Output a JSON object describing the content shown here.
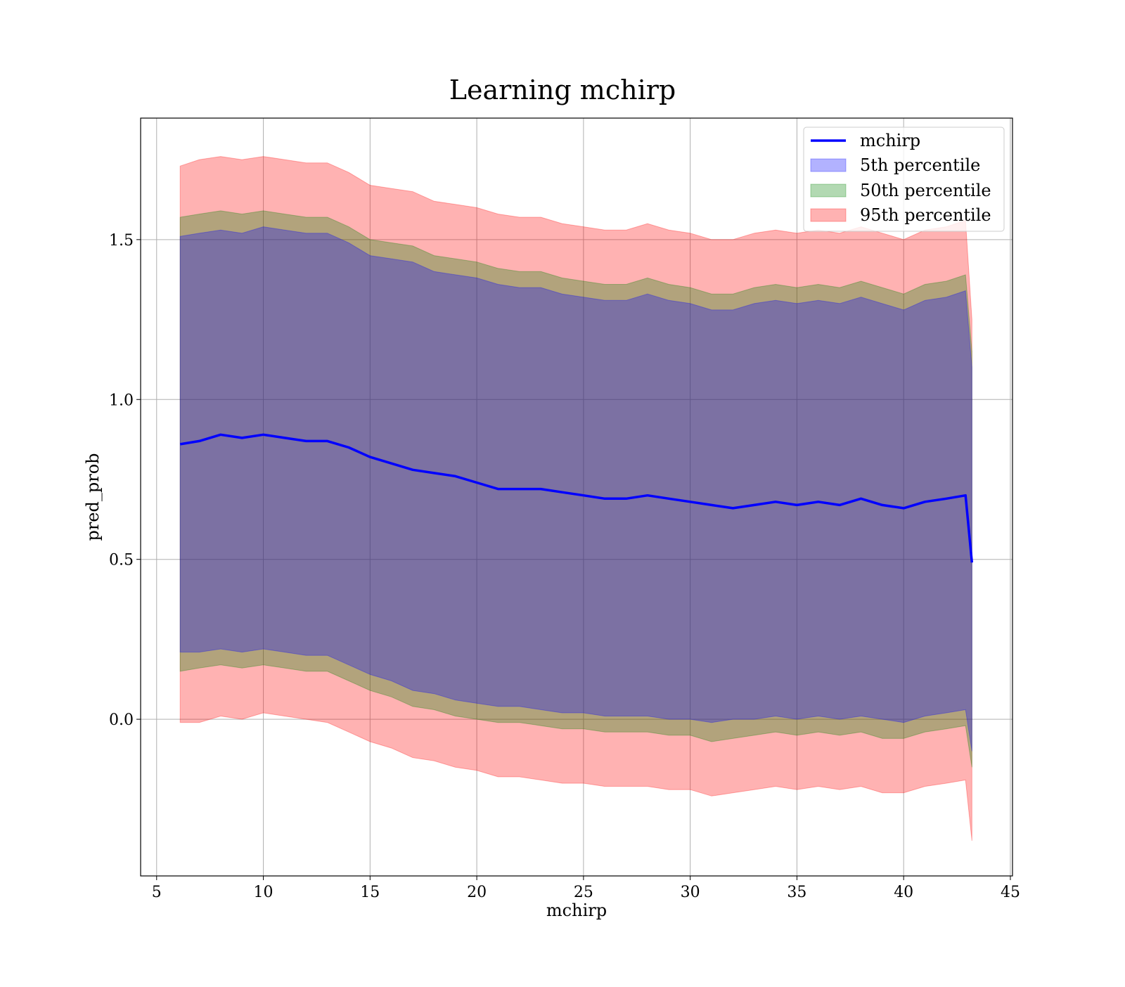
{
  "chart_data": {
    "type": "area",
    "title": "Learning mchirp",
    "xlabel": "mchirp",
    "ylabel": "pred_prob",
    "xlim": [
      4.25,
      45.1
    ],
    "ylim": [
      -0.49,
      1.88
    ],
    "xticks": [
      5,
      10,
      15,
      20,
      25,
      30,
      35,
      40,
      45
    ],
    "yticks": [
      0.0,
      0.5,
      1.0,
      1.5
    ],
    "ytick_labels": [
      "0.0",
      "0.5",
      "1.0",
      "1.5"
    ],
    "grid": true,
    "legend_position": "top-right",
    "x": [
      6.1,
      7.0,
      8.0,
      9.0,
      10.0,
      11.0,
      12.0,
      13.0,
      14.0,
      15.0,
      16.0,
      17.0,
      18.0,
      19.0,
      20.0,
      21.0,
      22.0,
      23.0,
      24.0,
      25.0,
      26.0,
      27.0,
      28.0,
      29.0,
      30.0,
      31.0,
      32.0,
      33.0,
      34.0,
      35.0,
      36.0,
      37.0,
      38.0,
      39.0,
      40.0,
      41.0,
      42.0,
      42.9,
      43.2
    ],
    "series": [
      {
        "name": "mchirp",
        "kind": "line",
        "color": "#0000ff",
        "values": [
          0.86,
          0.87,
          0.89,
          0.88,
          0.89,
          0.88,
          0.87,
          0.87,
          0.85,
          0.82,
          0.8,
          0.78,
          0.77,
          0.76,
          0.74,
          0.72,
          0.72,
          0.72,
          0.71,
          0.7,
          0.69,
          0.69,
          0.7,
          0.69,
          0.68,
          0.67,
          0.66,
          0.67,
          0.68,
          0.67,
          0.68,
          0.67,
          0.69,
          0.67,
          0.66,
          0.68,
          0.69,
          0.7,
          0.49
        ]
      },
      {
        "name": "5th percentile",
        "kind": "band",
        "color": "#0000ff",
        "lower": [
          0.21,
          0.21,
          0.22,
          0.21,
          0.22,
          0.21,
          0.2,
          0.2,
          0.17,
          0.14,
          0.12,
          0.09,
          0.08,
          0.06,
          0.05,
          0.04,
          0.04,
          0.03,
          0.02,
          0.02,
          0.01,
          0.01,
          0.01,
          0.0,
          0.0,
          -0.01,
          0.0,
          0.0,
          0.01,
          0.0,
          0.01,
          0.0,
          0.01,
          0.0,
          -0.01,
          0.01,
          0.02,
          0.03,
          -0.1
        ],
        "upper": [
          1.51,
          1.52,
          1.53,
          1.52,
          1.54,
          1.53,
          1.52,
          1.52,
          1.49,
          1.45,
          1.44,
          1.43,
          1.4,
          1.39,
          1.38,
          1.36,
          1.35,
          1.35,
          1.33,
          1.32,
          1.31,
          1.31,
          1.33,
          1.31,
          1.3,
          1.28,
          1.28,
          1.3,
          1.31,
          1.3,
          1.31,
          1.3,
          1.32,
          1.3,
          1.28,
          1.31,
          1.32,
          1.34,
          1.1
        ]
      },
      {
        "name": "50th percentile",
        "kind": "band",
        "color": "#008000",
        "lower": [
          0.15,
          0.16,
          0.17,
          0.16,
          0.17,
          0.16,
          0.15,
          0.15,
          0.12,
          0.09,
          0.07,
          0.04,
          0.03,
          0.01,
          0.0,
          -0.01,
          -0.01,
          -0.02,
          -0.03,
          -0.03,
          -0.04,
          -0.04,
          -0.04,
          -0.05,
          -0.05,
          -0.07,
          -0.06,
          -0.05,
          -0.04,
          -0.05,
          -0.04,
          -0.05,
          -0.04,
          -0.06,
          -0.06,
          -0.04,
          -0.03,
          -0.02,
          -0.15
        ],
        "upper": [
          1.57,
          1.58,
          1.59,
          1.58,
          1.59,
          1.58,
          1.57,
          1.57,
          1.54,
          1.5,
          1.49,
          1.48,
          1.45,
          1.44,
          1.43,
          1.41,
          1.4,
          1.4,
          1.38,
          1.37,
          1.36,
          1.36,
          1.38,
          1.36,
          1.35,
          1.33,
          1.33,
          1.35,
          1.36,
          1.35,
          1.36,
          1.35,
          1.37,
          1.35,
          1.33,
          1.36,
          1.37,
          1.39,
          1.15
        ]
      },
      {
        "name": "95th percentile",
        "kind": "band",
        "color": "#ff0000",
        "lower": [
          -0.01,
          -0.01,
          0.01,
          0.0,
          0.02,
          0.01,
          0.0,
          -0.01,
          -0.04,
          -0.07,
          -0.09,
          -0.12,
          -0.13,
          -0.15,
          -0.16,
          -0.18,
          -0.18,
          -0.19,
          -0.2,
          -0.2,
          -0.21,
          -0.21,
          -0.21,
          -0.22,
          -0.22,
          -0.24,
          -0.23,
          -0.22,
          -0.21,
          -0.22,
          -0.21,
          -0.22,
          -0.21,
          -0.23,
          -0.23,
          -0.21,
          -0.2,
          -0.19,
          -0.38
        ],
        "upper": [
          1.73,
          1.75,
          1.76,
          1.75,
          1.76,
          1.75,
          1.74,
          1.74,
          1.71,
          1.67,
          1.66,
          1.65,
          1.62,
          1.61,
          1.6,
          1.58,
          1.57,
          1.57,
          1.55,
          1.54,
          1.53,
          1.53,
          1.55,
          1.53,
          1.52,
          1.5,
          1.5,
          1.52,
          1.53,
          1.52,
          1.53,
          1.52,
          1.54,
          1.52,
          1.5,
          1.53,
          1.54,
          1.56,
          1.25
        ]
      }
    ]
  }
}
